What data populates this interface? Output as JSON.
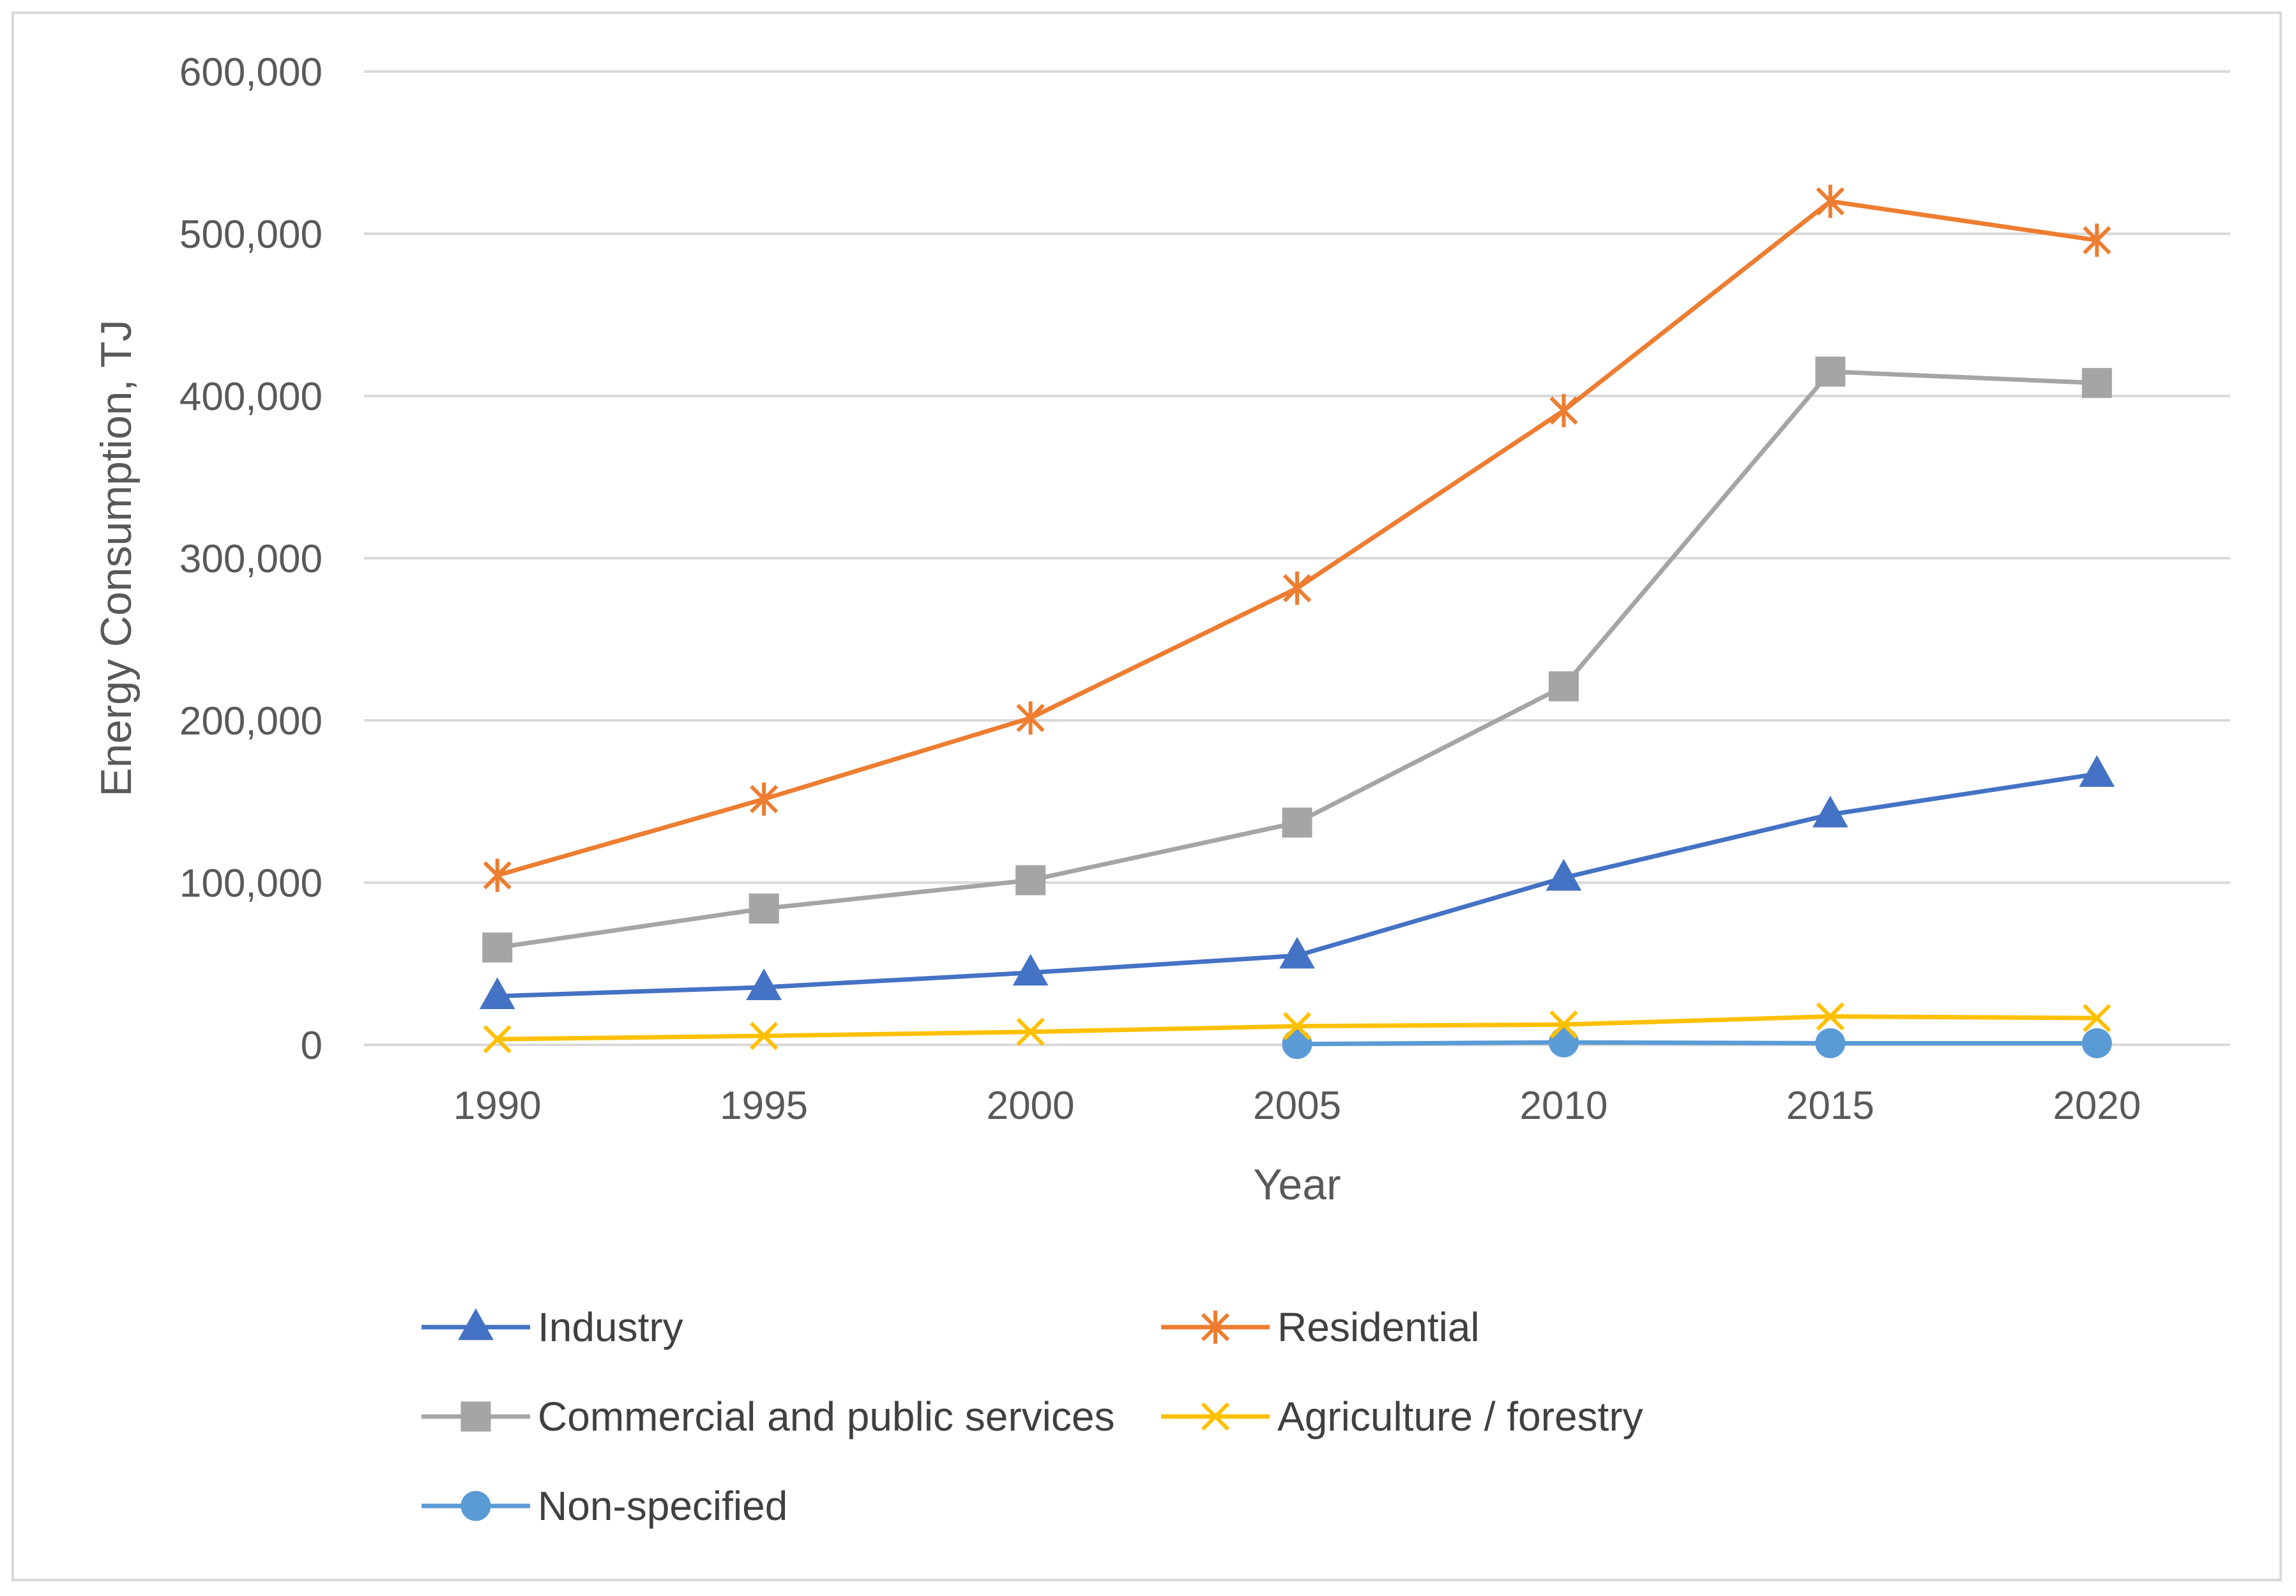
{
  "chart_data": {
    "type": "line",
    "title": "",
    "xlabel": "Year",
    "ylabel": "Energy Consumption, TJ",
    "categories": [
      "1990",
      "1995",
      "2000",
      "2005",
      "2010",
      "2015",
      "2020"
    ],
    "ylim": [
      0,
      600000
    ],
    "yticks": [
      0,
      100000,
      200000,
      300000,
      400000,
      500000,
      600000
    ],
    "ytick_labels": [
      "0",
      "100,000",
      "200,000",
      "300,000",
      "400,000",
      "500,000",
      "600,000"
    ],
    "grid": true,
    "legend_position": "bottom",
    "series": [
      {
        "name": "Industry",
        "color": "#4472c4",
        "marker": "triangle",
        "values": [
          30000,
          35500,
          44500,
          55000,
          103000,
          142000,
          167000
        ]
      },
      {
        "name": "Residential",
        "color": "#ed7d31",
        "marker": "asterisk",
        "values": [
          104500,
          151500,
          201500,
          281500,
          391000,
          520000,
          496000
        ]
      },
      {
        "name": "Commercial and public services",
        "color": "#a5a5a5",
        "marker": "square",
        "values": [
          60000,
          84000,
          101500,
          137000,
          221000,
          415000,
          408000
        ]
      },
      {
        "name": "Agriculture / forestry",
        "color": "#ffc000",
        "marker": "x",
        "values": [
          3500,
          5500,
          8000,
          11500,
          12500,
          17500,
          16500
        ]
      },
      {
        "name": "Non-specified",
        "color": "#5b9bd5",
        "marker": "circle",
        "values": [
          null,
          null,
          null,
          500,
          1500,
          1000,
          1000
        ]
      }
    ]
  }
}
